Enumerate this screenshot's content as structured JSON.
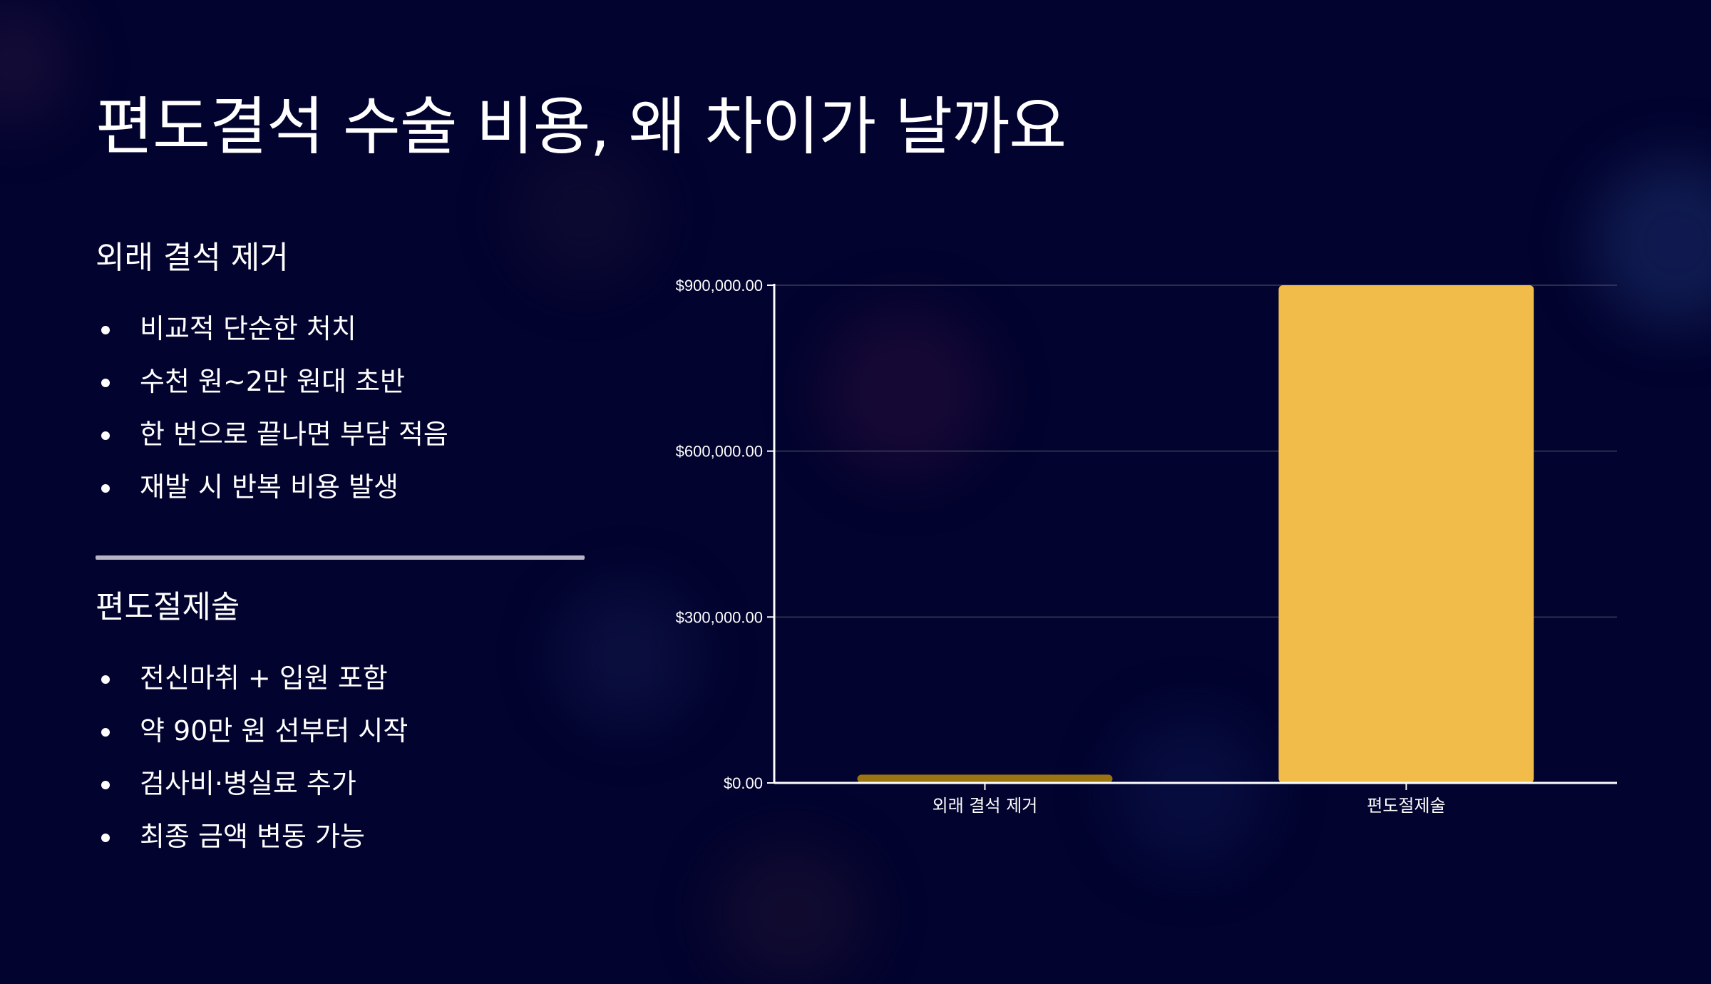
{
  "slide": {
    "title": "편도결석 수술 비용, 왜 차이가 날까요"
  },
  "left_panel": {
    "section1": {
      "heading": "외래 결석 제거",
      "bullets": [
        "비교적 단순한 처치",
        "수천 원~2만 원대 초반",
        "한 번으로 끝나면 부담 적음",
        "재발 시 반복 비용 발생"
      ]
    },
    "section2": {
      "heading": "편도절제술",
      "bullets": [
        "전신마취 + 입원 포함",
        "약 90만 원 선부터 시작",
        "검사비·병실료 추가",
        "최종 금액 변동 가능"
      ]
    }
  },
  "colors": {
    "background": "#02032e",
    "bar_low": "#9a7411",
    "bar_high": "#f2bc4a",
    "gridline": "#3b3d5c",
    "axis": "#ffffff",
    "divider": "#b7b4c6"
  },
  "chart_data": {
    "type": "bar",
    "categories": [
      "외래 결석 제거",
      "편도절제술"
    ],
    "values": [
      15000,
      900000
    ],
    "ylim": [
      0,
      900000
    ],
    "yticks": [
      0,
      300000,
      600000,
      900000
    ],
    "ytick_labels": [
      "$0.00",
      "$300,000.00",
      "$600,000.00",
      "$900,000.00"
    ],
    "grid": true,
    "legend": "none",
    "title": "",
    "xlabel": "",
    "ylabel": ""
  }
}
